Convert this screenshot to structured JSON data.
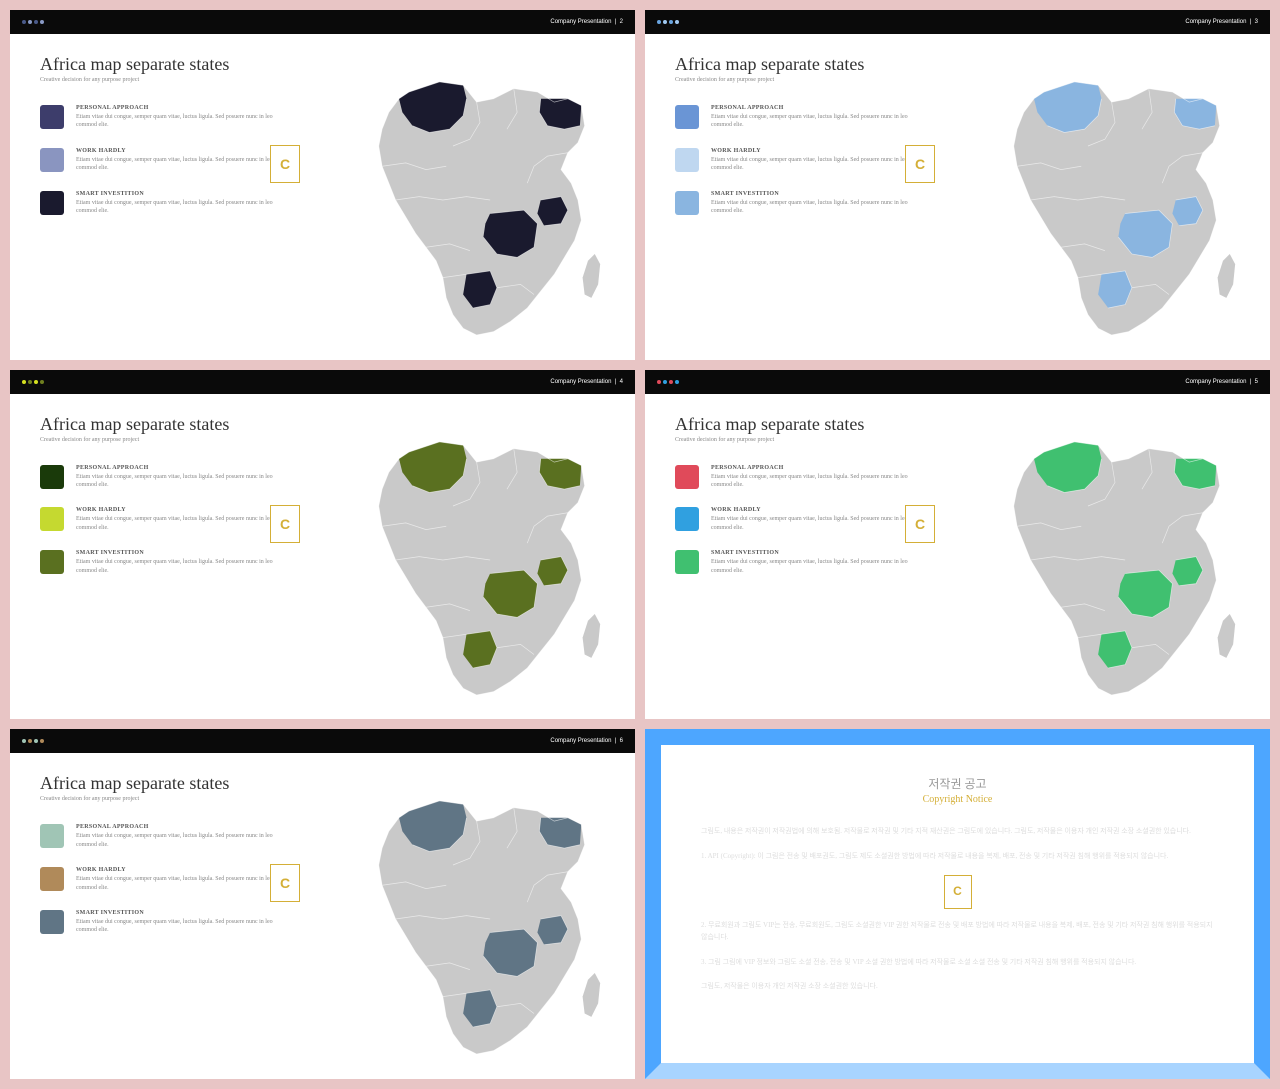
{
  "global": {
    "title": "Africa map separate states",
    "subtitle": "Creative decision for any purpose project",
    "header_label": "Company Presentation",
    "legend_items": [
      {
        "title": "PERSONAL APPROACH",
        "desc": "Etiam vitae dui congue, semper quam vitae, luctus ligula. Sed posuere nunc in leo commod elie."
      },
      {
        "title": "WORK HARDLY",
        "desc": "Etiam vitae dui congue, semper quam vitae, luctus ligula. Sed posuere nunc in leo commod elie."
      },
      {
        "title": "SMART INVESTITION",
        "desc": "Etiam vitae dui congue, semper quam vitae, luctus ligula. Sed posuere nunc in leo commod elie."
      }
    ],
    "base_map_color": "#c9c9c9",
    "bg_color": "#e8c5c5",
    "badge_letter": "C",
    "badge_border": "#d4af37"
  },
  "slides": [
    {
      "page": "2",
      "dots": [
        "#4a5a8a",
        "#8a9ac5"
      ],
      "swatches": [
        "#3d3d6b",
        "#8a95c0",
        "#1a1a2e"
      ],
      "highlight": "#1a1a2e"
    },
    {
      "page": "3",
      "dots": [
        "#6aa5e0",
        "#a0c8f0"
      ],
      "swatches": [
        "#6a95d5",
        "#bfd7f0",
        "#8ab5e0"
      ],
      "highlight": "#8ab5e0"
    },
    {
      "page": "4",
      "dots": [
        "#d4e020",
        "#708020"
      ],
      "swatches": [
        "#1a3a0a",
        "#c5d930",
        "#5a7020"
      ],
      "highlight": "#5a7020"
    },
    {
      "page": "5",
      "dots": [
        "#e04a5a",
        "#30a0e0"
      ],
      "swatches": [
        "#e04a5a",
        "#30a0e0",
        "#40c070"
      ],
      "highlight": "#40c070"
    },
    {
      "page": "6",
      "dots": [
        "#a0c5b5",
        "#b08a5a"
      ],
      "swatches": [
        "#a0c5b5",
        "#b08a5a",
        "#607585"
      ],
      "highlight": "#607585"
    }
  ],
  "copyright": {
    "border_top": "#4da6ff",
    "border_bottom": "#a8d4ff",
    "title": "저작권 공고",
    "subtitle": "Copyright Notice",
    "lines": [
      "그림도, 내용은 저작권이 저작권법에 의해 보호됨. 저작물로 저작권 및 기타 지적 재산권은 그림도에 있습니다. 그림도, 저작물은 이용자 개인 저작권 소장 소셜권한 있습니다.",
      "1. API (Copyright): 이 그림은 전송 및 배포권도, 그림도 제도 소셜권한 방법에 따라 저작물로 내용을 복제, 배포, 전송 및 기타 저작권 침해 행위를 적용되지 않습니다.",
      "2. 무료회원과 그림도 VIP는 전송, 무료회원도, 그림도 소셜권한 VIP 권한 저작물로 전송 및 배포 방법에 따라 저작물로 내용을 복제, 배포, 전송 및 기타 저작권 침해 행위를 적용되지 않습니다.",
      "3. 그림 그림에 VIP 정보와 그림도 소셜 전송, 전송 및 VIP 소셜 권한 방법에 따라 저작물로 소셜 소셜 전송 및 기타 저작권 침해 행위를 적용되지 않습니다.",
      "그림도, 저작물은 이용자 개인 저작권 소장 소셜권한 있습니다."
    ]
  }
}
